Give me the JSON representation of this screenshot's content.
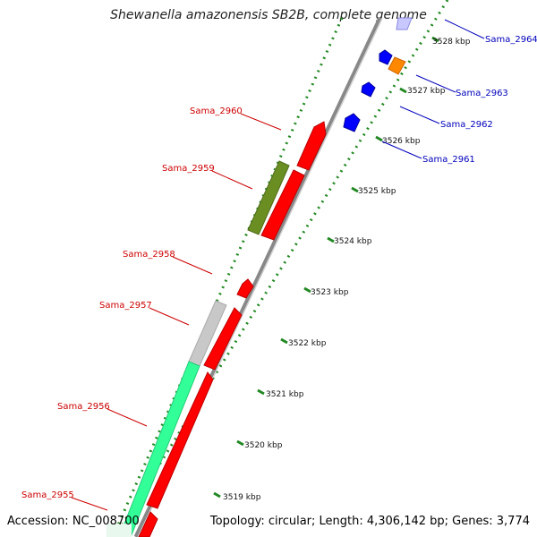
{
  "title": "Shewanella amazonensis SB2B, complete genome",
  "accession": "Accession: NC_008700",
  "topology": "Topology: circular; Length: 4,306,142 bp; Genes: 3,774",
  "colors": {
    "reverse_label": "#cc0000",
    "forward_label": "#0000bb",
    "cds_red": "#ff0000",
    "cds_blue": "#0000ff",
    "orange": "#ff8800",
    "olive": "#6b8e23",
    "grey": "#c8c8c8",
    "aqua": "#33ff99",
    "backbone": "#888888",
    "dots": "#228822"
  },
  "ticks": [
    "3519 kbp",
    "3520 kbp",
    "3521 kbp",
    "3522 kbp",
    "3523 kbp",
    "3524 kbp",
    "3525 kbp",
    "3526 kbp",
    "3527 kbp",
    "3528 kbp"
  ],
  "genes_left": [
    "Sama_2955",
    "Sama_2956",
    "Sama_2957",
    "Sama_2958",
    "Sama_2959",
    "Sama_2960"
  ],
  "genes_right": [
    "Sama_2961",
    "Sama_2962",
    "Sama_2963",
    "Sama_2964"
  ]
}
